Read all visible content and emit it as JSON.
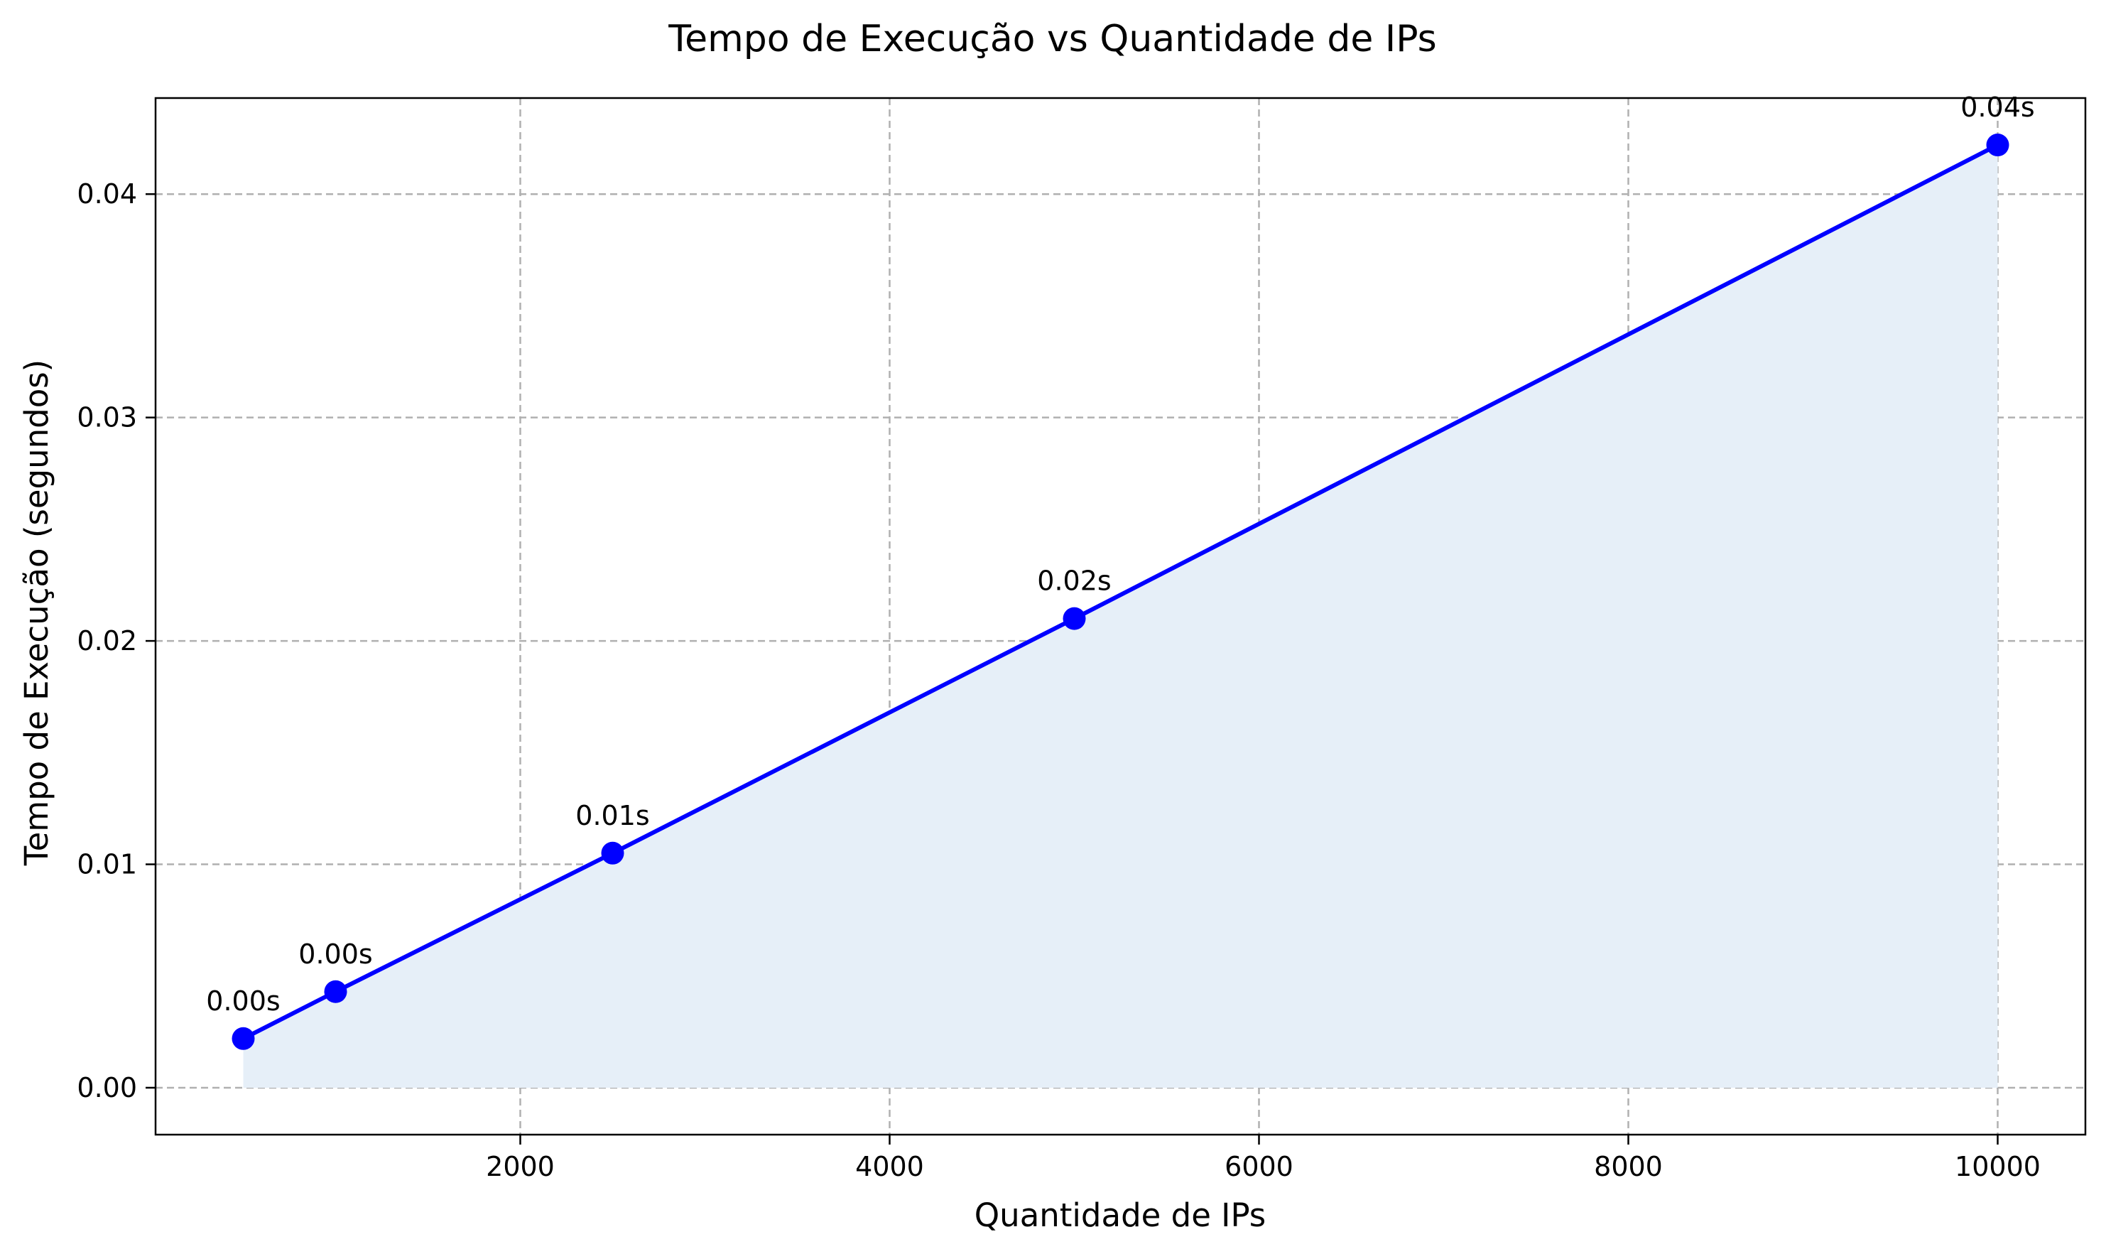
{
  "chart_data": {
    "type": "line",
    "title": "Tempo de Execução vs Quantidade de IPs",
    "xlabel": "Quantidade de IPs",
    "ylabel": "Tempo de Execução (segundos)",
    "x": [
      500,
      1000,
      2500,
      5000,
      10000
    ],
    "series": [
      {
        "values": [
          0.0022,
          0.0043,
          0.0105,
          0.021,
          0.0422
        ],
        "point_labels": [
          "0.00s",
          "0.00s",
          "0.01s",
          "0.02s",
          "0.04s"
        ],
        "color": "#0000ff",
        "fill_color": "#e6eff8"
      }
    ],
    "xlim": [
      25,
      10475
    ],
    "ylim": [
      -0.0021,
      0.0443
    ],
    "xticks": [
      2000,
      4000,
      6000,
      8000,
      10000
    ],
    "xtick_labels": [
      "2000",
      "4000",
      "6000",
      "8000",
      "10000"
    ],
    "yticks": [
      0.0,
      0.01,
      0.02,
      0.03,
      0.04
    ],
    "ytick_labels": [
      "0.00",
      "0.01",
      "0.02",
      "0.03",
      "0.04"
    ],
    "grid": true,
    "area_fill": true
  }
}
